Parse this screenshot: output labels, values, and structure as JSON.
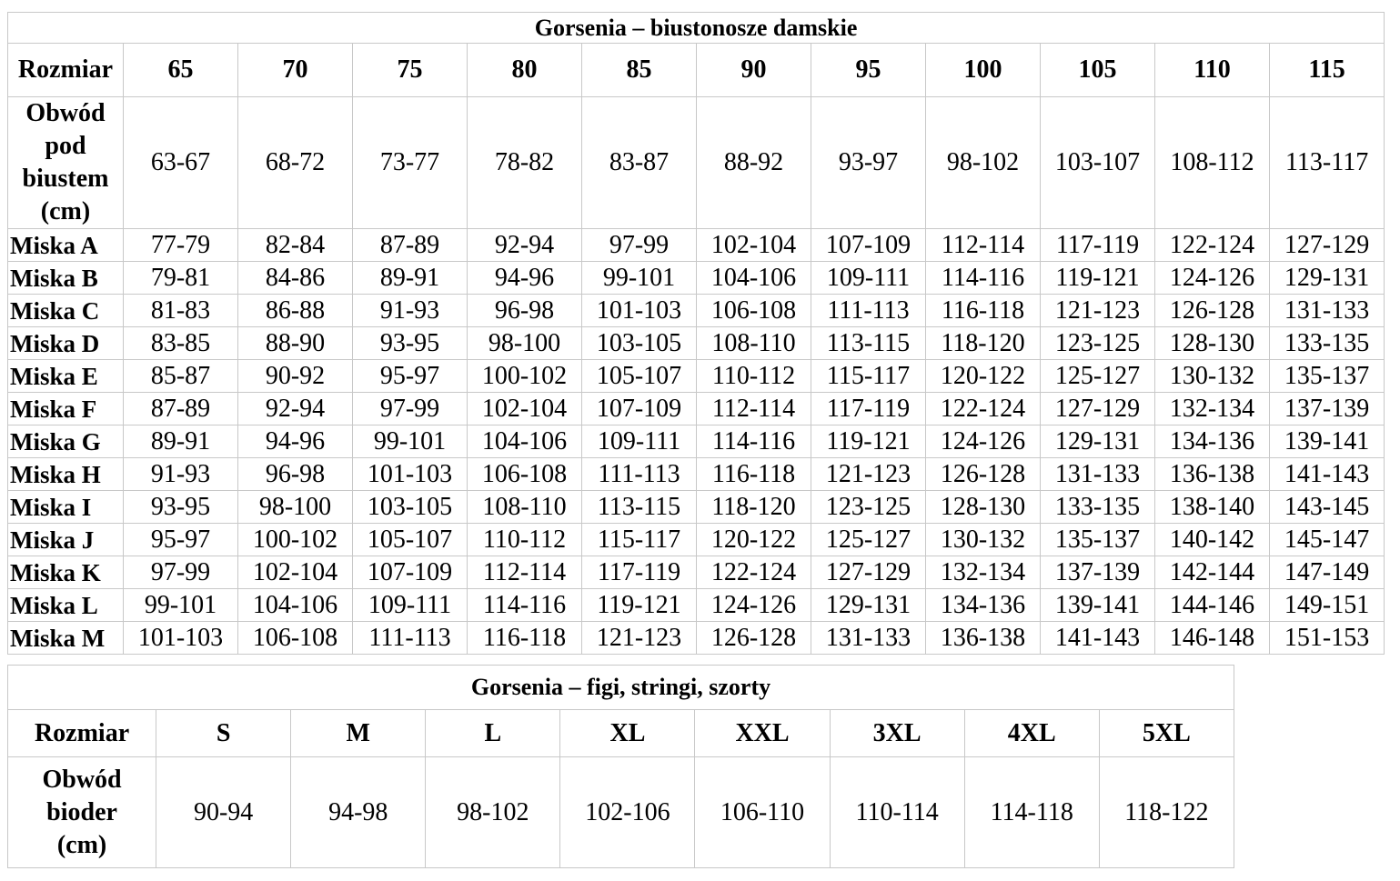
{
  "bra": {
    "title": "Gorsenia – biustonosze damskie",
    "size_label": "Rozmiar",
    "sizes": [
      "65",
      "70",
      "75",
      "80",
      "85",
      "90",
      "95",
      "100",
      "105",
      "110",
      "115"
    ],
    "underbust_label": [
      "Obwód",
      "pod",
      "biustem",
      "(cm)"
    ],
    "underbust": [
      "63-67",
      "68-72",
      "73-77",
      "78-82",
      "83-87",
      "88-92",
      "93-97",
      "98-102",
      "103-107",
      "108-112",
      "113-117"
    ],
    "rows": [
      {
        "label": "Miska A",
        "values": [
          "77-79",
          "82-84",
          "87-89",
          "92-94",
          "97-99",
          "102-104",
          "107-109",
          "112-114",
          "117-119",
          "122-124",
          "127-129"
        ]
      },
      {
        "label": "Miska B",
        "values": [
          "79-81",
          "84-86",
          "89-91",
          "94-96",
          "99-101",
          "104-106",
          "109-111",
          "114-116",
          "119-121",
          "124-126",
          "129-131"
        ]
      },
      {
        "label": "Miska C",
        "values": [
          "81-83",
          "86-88",
          "91-93",
          "96-98",
          "101-103",
          "106-108",
          "111-113",
          "116-118",
          "121-123",
          "126-128",
          "131-133"
        ]
      },
      {
        "label": "Miska D",
        "values": [
          "83-85",
          "88-90",
          "93-95",
          "98-100",
          "103-105",
          "108-110",
          "113-115",
          "118-120",
          "123-125",
          "128-130",
          "133-135"
        ]
      },
      {
        "label": "Miska E",
        "values": [
          "85-87",
          "90-92",
          "95-97",
          "100-102",
          "105-107",
          "110-112",
          "115-117",
          "120-122",
          "125-127",
          "130-132",
          "135-137"
        ]
      },
      {
        "label": "Miska F",
        "values": [
          "87-89",
          "92-94",
          "97-99",
          "102-104",
          "107-109",
          "112-114",
          "117-119",
          "122-124",
          "127-129",
          "132-134",
          "137-139"
        ]
      },
      {
        "label": "Miska G",
        "values": [
          "89-91",
          "94-96",
          "99-101",
          "104-106",
          "109-111",
          "114-116",
          "119-121",
          "124-126",
          "129-131",
          "134-136",
          "139-141"
        ]
      },
      {
        "label": "Miska H",
        "values": [
          "91-93",
          "96-98",
          "101-103",
          "106-108",
          "111-113",
          "116-118",
          "121-123",
          "126-128",
          "131-133",
          "136-138",
          "141-143"
        ]
      },
      {
        "label": "Miska I",
        "values": [
          "93-95",
          "98-100",
          "103-105",
          "108-110",
          "113-115",
          "118-120",
          "123-125",
          "128-130",
          "133-135",
          "138-140",
          "143-145"
        ]
      },
      {
        "label": "Miska J",
        "values": [
          "95-97",
          "100-102",
          "105-107",
          "110-112",
          "115-117",
          "120-122",
          "125-127",
          "130-132",
          "135-137",
          "140-142",
          "145-147"
        ]
      },
      {
        "label": "Miska K",
        "values": [
          "97-99",
          "102-104",
          "107-109",
          "112-114",
          "117-119",
          "122-124",
          "127-129",
          "132-134",
          "137-139",
          "142-144",
          "147-149"
        ]
      },
      {
        "label": "Miska L",
        "values": [
          "99-101",
          "104-106",
          "109-111",
          "114-116",
          "119-121",
          "124-126",
          "129-131",
          "134-136",
          "139-141",
          "144-146",
          "149-151"
        ]
      },
      {
        "label": "Miska M",
        "values": [
          "101-103",
          "106-108",
          "111-113",
          "116-118",
          "121-123",
          "126-128",
          "131-133",
          "136-138",
          "141-143",
          "146-148",
          "151-153"
        ]
      }
    ]
  },
  "briefs": {
    "title": "Gorsenia – figi, stringi, szorty",
    "size_label": "Rozmiar",
    "sizes": [
      "S",
      "M",
      "L",
      "XL",
      "XXL",
      "3XL",
      "4XL",
      "5XL"
    ],
    "hip_label": [
      "Obwód",
      "bioder",
      "(cm)"
    ],
    "hips": [
      "90-94",
      "94-98",
      "98-102",
      "102-106",
      "106-110",
      "110-114",
      "114-118",
      "118-122"
    ]
  }
}
